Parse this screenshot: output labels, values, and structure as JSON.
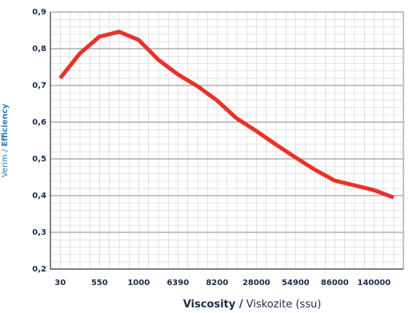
{
  "chart_data": {
    "type": "line",
    "xlabel": "Viscosity /",
    "xlabel_sub": "Viskozite (ssu)",
    "ylabel": "Verim /",
    "ylabel_sub": "Efficiency",
    "categories": [
      "30",
      null,
      "550",
      null,
      "1000",
      null,
      "6390",
      null,
      "8200",
      null,
      "28000",
      null,
      "54900",
      null,
      "86000",
      null,
      "140000",
      null
    ],
    "series": [
      {
        "name": "Efficiency",
        "color": "#e8322a",
        "values": [
          0.72,
          0.787,
          0.833,
          0.846,
          0.824,
          0.77,
          0.73,
          0.698,
          0.659,
          0.61,
          0.576,
          0.539,
          0.504,
          0.47,
          0.441,
          0.428,
          0.415,
          0.395
        ]
      }
    ],
    "ylim": [
      0.2,
      0.9
    ],
    "yticks": [
      {
        "value": 0.2,
        "label": "0,2"
      },
      {
        "value": 0.3,
        "label": "0,3"
      },
      {
        "value": 0.4,
        "label": "0,4"
      },
      {
        "value": 0.5,
        "label": "0,5"
      },
      {
        "value": 0.6,
        "label": "0,6"
      },
      {
        "value": 0.7,
        "label": "0,7"
      },
      {
        "value": 0.8,
        "label": "0,8"
      },
      {
        "value": 0.9,
        "label": "0,9"
      }
    ],
    "grid": true
  }
}
